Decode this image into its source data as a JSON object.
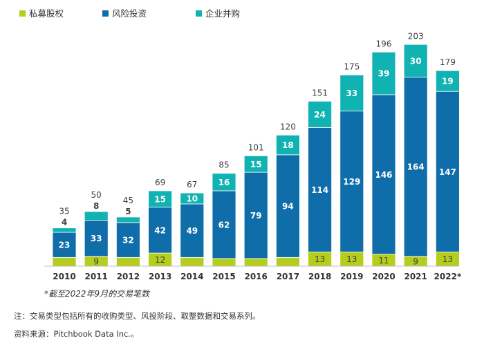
{
  "chart_data": {
    "type": "bar",
    "stacked": true,
    "categories": [
      "2010",
      "2011",
      "2012",
      "2013",
      "2014",
      "2015",
      "2016",
      "2017",
      "2018",
      "2019",
      "2020",
      "2021",
      "2022*"
    ],
    "series": [
      {
        "name": "私募股权",
        "color": "#b5cd1d",
        "values": [
          8,
          9,
          8,
          12,
          8,
          7,
          7,
          8,
          13,
          13,
          11,
          9,
          13
        ]
      },
      {
        "name": "风险投资",
        "color": "#0f6eaa",
        "values": [
          23,
          33,
          32,
          42,
          49,
          62,
          79,
          94,
          114,
          129,
          146,
          164,
          147
        ]
      },
      {
        "name": "企业并购",
        "color": "#11b2b2",
        "values": [
          4,
          8,
          5,
          15,
          10,
          16,
          15,
          18,
          24,
          33,
          39,
          30,
          19
        ]
      }
    ],
    "totals": [
      35,
      50,
      45,
      69,
      67,
      85,
      101,
      120,
      151,
      175,
      196,
      203,
      179
    ],
    "ylim": [
      0,
      203
    ],
    "grid": false,
    "legend_position": "top-left"
  },
  "footnotes": {
    "asterisk": "*截至2022年9月的交易笔数",
    "note": "注：交易类型包括所有的收购类型、风投阶段、取整数据和交易系列。",
    "source": "资料来源：Pitchbook Data Inc.。"
  }
}
